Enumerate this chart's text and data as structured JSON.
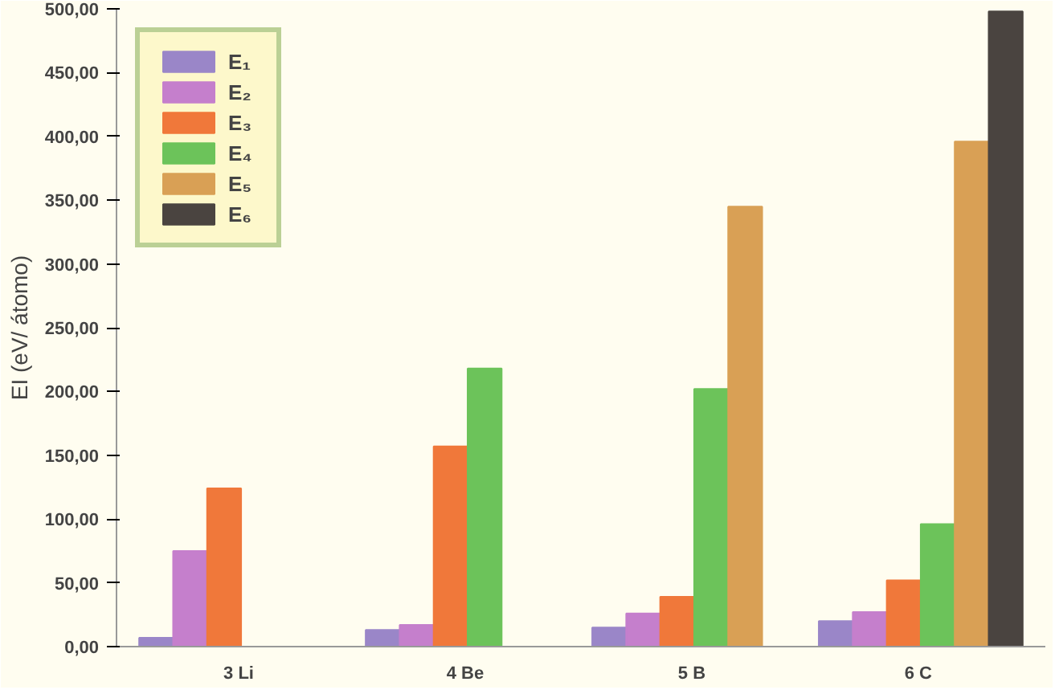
{
  "chart_data": {
    "type": "bar",
    "ylabel": "EI (eV/ átomo)",
    "categories": [
      "3  Li",
      "4  Be",
      "5  B",
      "6  C"
    ],
    "series": [
      {
        "name": "E₁",
        "color": "#9a86c8",
        "values": [
          7,
          13,
          15,
          20
        ]
      },
      {
        "name": "E₂",
        "color": "#c57fcc",
        "values": [
          75,
          17,
          26,
          27
        ]
      },
      {
        "name": "E₃",
        "color": "#f0783a",
        "values": [
          124,
          157,
          39,
          52
        ]
      },
      {
        "name": "E₄",
        "color": "#6cc35a",
        "values": [
          null,
          218,
          202,
          96
        ]
      },
      {
        "name": "E₅",
        "color": "#d9a055",
        "values": [
          null,
          null,
          345,
          396
        ]
      },
      {
        "name": "E₆",
        "color": "#4a4440",
        "values": [
          null,
          null,
          null,
          498
        ]
      }
    ],
    "ylim": [
      0,
      500
    ],
    "yticks": [
      {
        "value": 0,
        "label": "0,00"
      },
      {
        "value": 50,
        "label": "50,00"
      },
      {
        "value": 100,
        "label": "100,00"
      },
      {
        "value": 150,
        "label": "150,00"
      },
      {
        "value": 200,
        "label": "200,00"
      },
      {
        "value": 250,
        "label": "250,00"
      },
      {
        "value": 300,
        "label": "300,00"
      },
      {
        "value": 350,
        "label": "350,00"
      },
      {
        "value": 400,
        "label": "400,00"
      },
      {
        "value": 450,
        "label": "450,00"
      },
      {
        "value": 500,
        "label": "500,00"
      }
    ],
    "grid": false,
    "legend": "top left"
  }
}
